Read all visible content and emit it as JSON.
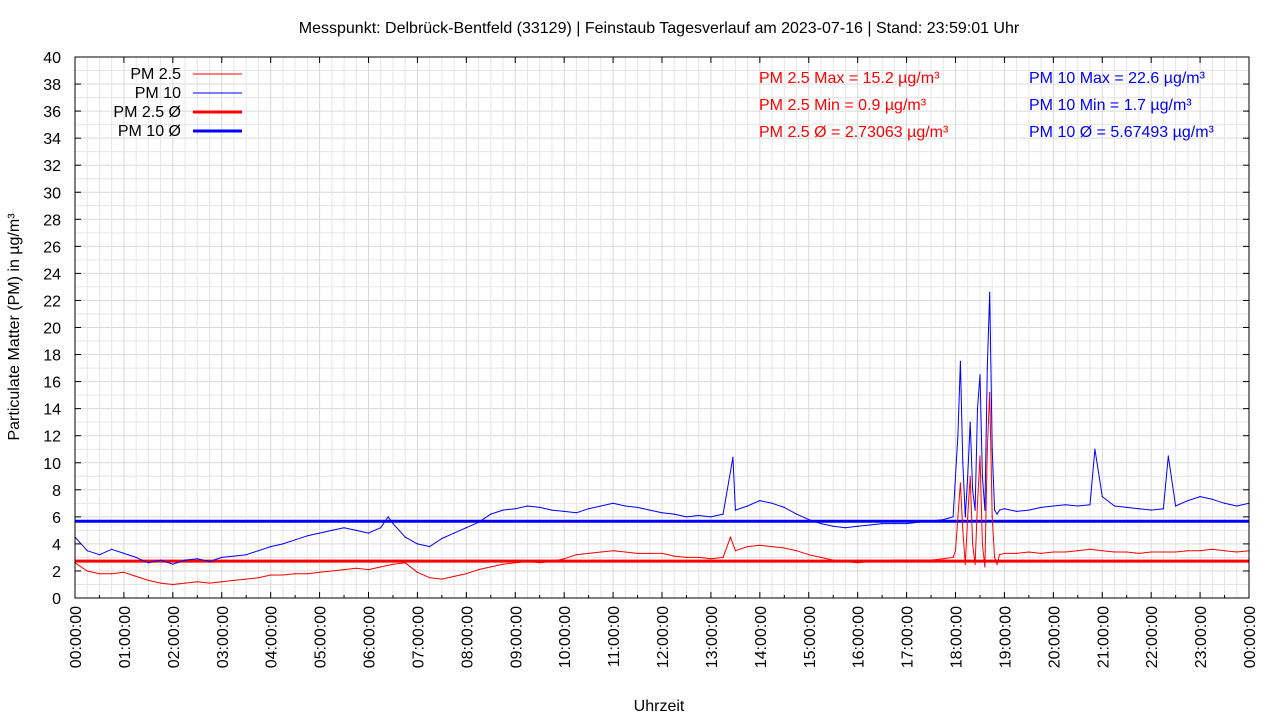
{
  "chart_data": {
    "type": "line",
    "title": "Messpunkt: Delbrück-Bentfeld (33129) | Feinstaub Tagesverlauf am 2023-07-16 | Stand: 23:59:01 Uhr",
    "xlabel": "Uhrzeit",
    "ylabel": "Particulate Matter (PM) in µg/m³",
    "ylim": [
      0,
      40
    ],
    "yticks": [
      0,
      2,
      4,
      6,
      8,
      10,
      12,
      14,
      16,
      18,
      20,
      22,
      24,
      26,
      28,
      30,
      32,
      34,
      36,
      38,
      40
    ],
    "xticks": [
      "00:00:00",
      "01:00:00",
      "02:00:00",
      "03:00:00",
      "04:00:00",
      "05:00:00",
      "06:00:00",
      "07:00:00",
      "08:00:00",
      "09:00:00",
      "10:00:00",
      "11:00:00",
      "12:00:00",
      "13:00:00",
      "14:00:00",
      "15:00:00",
      "16:00:00",
      "17:00:00",
      "18:00:00",
      "19:00:00",
      "20:00:00",
      "21:00:00",
      "22:00:00",
      "23:00:00",
      "00:00:00"
    ],
    "grid": true,
    "legend_position": "top-left",
    "series": [
      {
        "name": "PM 2.5",
        "color": "#ff0000",
        "x_hours": [
          0,
          0.25,
          0.5,
          0.75,
          1,
          1.25,
          1.5,
          1.75,
          2,
          2.25,
          2.5,
          2.75,
          3,
          3.25,
          3.5,
          3.75,
          4,
          4.25,
          4.5,
          4.75,
          5,
          5.25,
          5.5,
          5.75,
          6,
          6.25,
          6.5,
          6.75,
          7,
          7.25,
          7.5,
          7.75,
          8,
          8.25,
          8.5,
          8.75,
          9,
          9.25,
          9.5,
          9.75,
          10,
          10.25,
          10.5,
          10.75,
          11,
          11.25,
          11.5,
          11.75,
          12,
          12.25,
          12.5,
          12.75,
          13,
          13.25,
          13.4,
          13.5,
          13.75,
          14,
          14.25,
          14.5,
          14.75,
          15,
          15.25,
          15.5,
          15.75,
          16,
          16.25,
          16.5,
          16.75,
          17,
          17.25,
          17.5,
          17.75,
          17.95,
          18,
          18.05,
          18.1,
          18.15,
          18.2,
          18.25,
          18.3,
          18.35,
          18.4,
          18.45,
          18.5,
          18.55,
          18.6,
          18.65,
          18.7,
          18.75,
          18.8,
          18.85,
          18.9,
          19,
          19.25,
          19.5,
          19.75,
          20,
          20.25,
          20.5,
          20.75,
          21,
          21.25,
          21.5,
          21.75,
          22,
          22.25,
          22.5,
          22.75,
          23,
          23.25,
          23.5,
          23.75,
          24
        ],
        "values": [
          2.6,
          2.0,
          1.8,
          1.8,
          1.9,
          1.6,
          1.3,
          1.1,
          1.0,
          1.1,
          1.2,
          1.1,
          1.2,
          1.3,
          1.4,
          1.5,
          1.7,
          1.7,
          1.8,
          1.8,
          1.9,
          2.0,
          2.1,
          2.2,
          2.1,
          2.3,
          2.5,
          2.6,
          1.9,
          1.5,
          1.4,
          1.6,
          1.8,
          2.1,
          2.3,
          2.5,
          2.6,
          2.7,
          2.6,
          2.7,
          2.9,
          3.2,
          3.3,
          3.4,
          3.5,
          3.4,
          3.3,
          3.3,
          3.3,
          3.1,
          3.0,
          3.0,
          2.9,
          3.0,
          4.5,
          3.5,
          3.8,
          3.9,
          3.8,
          3.7,
          3.5,
          3.2,
          3.0,
          2.8,
          2.7,
          2.6,
          2.7,
          2.7,
          2.8,
          2.8,
          2.8,
          2.8,
          2.9,
          3.0,
          3.5,
          6.0,
          8.5,
          5.0,
          2.5,
          6.0,
          9.0,
          4.0,
          2.5,
          7.0,
          10.5,
          4.0,
          2.3,
          11.0,
          15.2,
          6.0,
          3.0,
          2.5,
          3.2,
          3.3,
          3.3,
          3.4,
          3.3,
          3.4,
          3.4,
          3.5,
          3.6,
          3.5,
          3.4,
          3.4,
          3.3,
          3.4,
          3.4,
          3.4,
          3.5,
          3.5,
          3.6,
          3.5,
          3.4,
          3.5
        ]
      },
      {
        "name": "PM 10",
        "color": "#0000ff",
        "x_hours": [
          0,
          0.25,
          0.5,
          0.75,
          1,
          1.25,
          1.5,
          1.75,
          2,
          2.25,
          2.5,
          2.75,
          3,
          3.25,
          3.5,
          3.75,
          4,
          4.25,
          4.5,
          4.75,
          5,
          5.25,
          5.5,
          5.75,
          6,
          6.25,
          6.4,
          6.5,
          6.75,
          7,
          7.25,
          7.5,
          7.75,
          8,
          8.25,
          8.5,
          8.75,
          9,
          9.25,
          9.5,
          9.75,
          10,
          10.25,
          10.5,
          10.75,
          11,
          11.25,
          11.5,
          11.75,
          12,
          12.25,
          12.5,
          12.75,
          13,
          13.25,
          13.45,
          13.5,
          13.75,
          14,
          14.25,
          14.5,
          14.75,
          15,
          15.25,
          15.5,
          15.75,
          16,
          16.25,
          16.5,
          16.75,
          17,
          17.25,
          17.5,
          17.75,
          17.95,
          18.05,
          18.1,
          18.15,
          18.2,
          18.25,
          18.3,
          18.35,
          18.4,
          18.45,
          18.5,
          18.55,
          18.6,
          18.65,
          18.7,
          18.75,
          18.8,
          18.85,
          18.9,
          19,
          19.25,
          19.5,
          19.75,
          20,
          20.25,
          20.5,
          20.75,
          20.85,
          21,
          21.25,
          21.5,
          21.75,
          22,
          22.25,
          22.35,
          22.5,
          22.75,
          23,
          23.25,
          23.5,
          23.75,
          24
        ],
        "values": [
          4.5,
          3.5,
          3.2,
          3.6,
          3.3,
          3.0,
          2.6,
          2.8,
          2.5,
          2.8,
          2.9,
          2.7,
          3.0,
          3.1,
          3.2,
          3.5,
          3.8,
          4.0,
          4.3,
          4.6,
          4.8,
          5.0,
          5.2,
          5.0,
          4.8,
          5.2,
          6.0,
          5.5,
          4.5,
          4.0,
          3.8,
          4.4,
          4.8,
          5.2,
          5.6,
          6.2,
          6.5,
          6.6,
          6.8,
          6.7,
          6.5,
          6.4,
          6.3,
          6.6,
          6.8,
          7.0,
          6.8,
          6.7,
          6.5,
          6.3,
          6.2,
          6.0,
          6.1,
          6.0,
          6.2,
          10.4,
          6.5,
          6.8,
          7.2,
          7.0,
          6.7,
          6.2,
          5.8,
          5.5,
          5.3,
          5.2,
          5.3,
          5.4,
          5.5,
          5.5,
          5.5,
          5.6,
          5.7,
          5.8,
          6.0,
          12.0,
          17.5,
          10.0,
          6.0,
          9.0,
          13.0,
          8.0,
          6.5,
          14.0,
          16.5,
          9.0,
          6.5,
          17.0,
          22.6,
          11.0,
          6.5,
          6.2,
          6.5,
          6.6,
          6.4,
          6.5,
          6.7,
          6.8,
          6.9,
          6.8,
          6.9,
          11.0,
          7.5,
          6.8,
          6.7,
          6.6,
          6.5,
          6.6,
          10.5,
          6.8,
          7.2,
          7.5,
          7.3,
          7.0,
          6.8,
          7.0
        ]
      },
      {
        "name": "PM 2.5 Ø",
        "color": "#ff0000",
        "constant": 2.73063
      },
      {
        "name": "PM 10 Ø",
        "color": "#0000ff",
        "constant": 5.67493
      }
    ],
    "stats": {
      "pm25": {
        "color": "#ff0000",
        "max": "PM 2.5 Max = 15.2 µg/m³",
        "min": "PM 2.5 Min = 0.9 µg/m³",
        "avg": "PM 2.5 Ø = 2.73063 µg/m³"
      },
      "pm10": {
        "color": "#0000ff",
        "max": "PM 10 Max = 22.6 µg/m³",
        "min": "PM 10 Min = 1.7 µg/m³",
        "avg": "PM 10 Ø = 5.67493 µg/m³"
      }
    }
  }
}
